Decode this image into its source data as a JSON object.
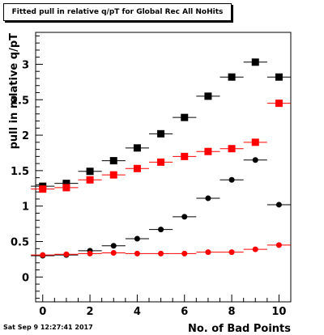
{
  "chart_data": {
    "type": "scatter",
    "title": "Fitted pull in relative q/pT for Global Rec All NoHits",
    "xlabel": "No. of Bad Points",
    "ylabel": "pull in relative q/pT",
    "xlim": [
      -0.3,
      10.5
    ],
    "ylim": [
      -0.35,
      3.45
    ],
    "xticks": [
      0,
      2,
      4,
      6,
      8,
      10
    ],
    "yticks": [
      0,
      0.5,
      1,
      1.5,
      2,
      2.5,
      3
    ],
    "ytick_labels": [
      "0",
      "0.5",
      "1",
      "1.5",
      "2",
      "2.5",
      "3"
    ],
    "xerr": 0.5,
    "grid": false,
    "series": [
      {
        "marker": "square",
        "color": "#000000",
        "x": [
          0,
          1,
          2,
          3,
          4,
          5,
          6,
          7,
          8,
          9,
          10
        ],
        "y": [
          1.28,
          1.32,
          1.49,
          1.64,
          1.82,
          2.02,
          2.25,
          2.55,
          2.82,
          3.03,
          2.82
        ]
      },
      {
        "marker": "square",
        "color": "#ff0000",
        "x": [
          0,
          1,
          2,
          3,
          4,
          5,
          6,
          7,
          8,
          9,
          10
        ],
        "y": [
          1.24,
          1.26,
          1.37,
          1.44,
          1.53,
          1.62,
          1.7,
          1.77,
          1.81,
          1.9,
          2.45
        ]
      },
      {
        "marker": "circle",
        "color": "#000000",
        "x": [
          0,
          1,
          2,
          3,
          4,
          5,
          6,
          7,
          8,
          9,
          10
        ],
        "y": [
          0.3,
          0.31,
          0.37,
          0.44,
          0.54,
          0.67,
          0.85,
          1.11,
          1.37,
          1.65,
          1.02
        ]
      },
      {
        "marker": "circle",
        "color": "#ff0000",
        "x": [
          0,
          1,
          2,
          3,
          4,
          5,
          6,
          7,
          8,
          9,
          10
        ],
        "y": [
          0.31,
          0.32,
          0.33,
          0.34,
          0.33,
          0.33,
          0.33,
          0.35,
          0.35,
          0.39,
          0.45
        ]
      }
    ]
  },
  "footer": {
    "date": "Sat Sep  9 12:27:41 2017"
  }
}
